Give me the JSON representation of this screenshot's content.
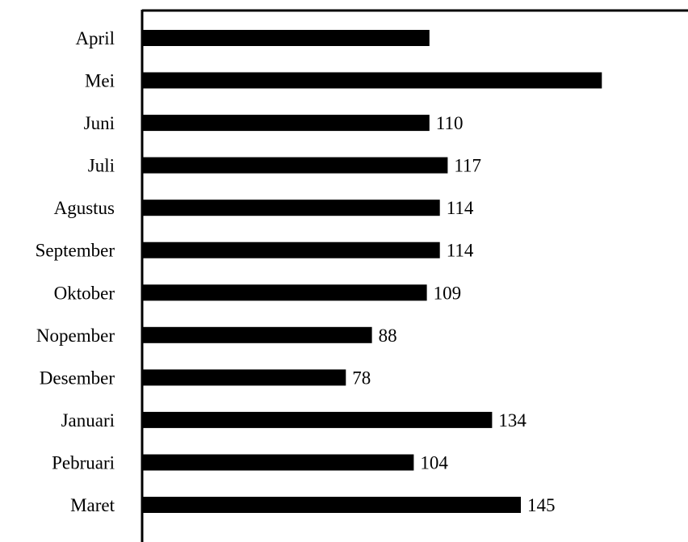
{
  "chart_data": {
    "type": "bar",
    "orientation": "horizontal",
    "title": "",
    "xlabel": "",
    "ylabel": "",
    "categories": [
      "April",
      "Mei",
      "Juni",
      "Juli",
      "Agustus",
      "September",
      "Oktober",
      "Nopember",
      "Desember",
      "Januari",
      "Pebruari",
      "Maret"
    ],
    "values": [
      110,
      176,
      110,
      117,
      114,
      114,
      109,
      88,
      78,
      134,
      104,
      145
    ],
    "value_labels": [
      "",
      "",
      "110",
      "117",
      "114",
      "114",
      "109",
      "88",
      "78",
      "134",
      "104",
      "145"
    ],
    "xlim": [
      0,
      209
    ],
    "grid": false,
    "colors": {
      "bar": "#000000",
      "text": "#000000",
      "axis": "#000000"
    }
  }
}
